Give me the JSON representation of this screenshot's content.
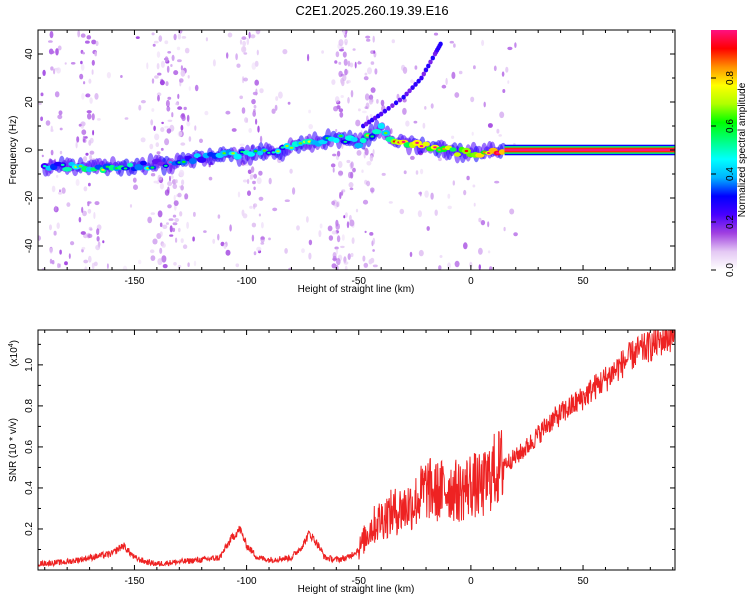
{
  "title": "C2E1.2025.260.19.39.E16",
  "chart_data": [
    {
      "type": "heatmap",
      "name": "spectrogram",
      "xlabel": "Height of straight line (km)",
      "ylabel": "Frequency (Hz)",
      "xlim": [
        -193,
        91
      ],
      "ylim": [
        -50,
        50
      ],
      "xticks": [
        -150,
        -100,
        -50,
        0,
        50
      ],
      "xtick_labels": [
        "-150",
        "-100",
        "-50",
        "0",
        "50"
      ],
      "yticks": [
        -40,
        -20,
        0,
        20,
        40
      ],
      "ytick_labels": [
        "-40",
        "-20",
        "0",
        "20",
        "40"
      ],
      "colorbar": {
        "label": "Normalized spectral amplitude",
        "range": [
          0,
          1
        ],
        "ticks": [
          0.0,
          0.2,
          0.4,
          0.6,
          0.8
        ],
        "tick_labels": [
          "0.0",
          "0.2",
          "0.4",
          "0.6",
          "0.8"
        ],
        "colors": [
          "#ffffff",
          "#e4c8f4",
          "#a040e0",
          "#4800ff",
          "#0000ff",
          "#00b4ff",
          "#00ffff",
          "#00ff80",
          "#00ff00",
          "#b0ff00",
          "#ffff00",
          "#ff9000",
          "#ff0000",
          "#ff1080"
        ]
      },
      "main_ridge": [
        {
          "x": -190,
          "y": -7,
          "v": 0.35
        },
        {
          "x": -180,
          "y": -7,
          "v": 0.4
        },
        {
          "x": -170,
          "y": -7,
          "v": 0.45
        },
        {
          "x": -160,
          "y": -7,
          "v": 0.45
        },
        {
          "x": -150,
          "y": -7,
          "v": 0.4
        },
        {
          "x": -140,
          "y": -6,
          "v": 0.3
        },
        {
          "x": -130,
          "y": -5,
          "v": 0.25
        },
        {
          "x": -120,
          "y": -3,
          "v": 0.35
        },
        {
          "x": -110,
          "y": -2,
          "v": 0.45
        },
        {
          "x": -100,
          "y": -2,
          "v": 0.4
        },
        {
          "x": -90,
          "y": -1,
          "v": 0.35
        },
        {
          "x": -80,
          "y": 1,
          "v": 0.4
        },
        {
          "x": -70,
          "y": 3,
          "v": 0.4
        },
        {
          "x": -60,
          "y": 5,
          "v": 0.35
        },
        {
          "x": -50,
          "y": 3,
          "v": 0.45
        },
        {
          "x": -45,
          "y": 6,
          "v": 0.45
        },
        {
          "x": -40,
          "y": 9,
          "v": 0.4
        },
        {
          "x": -35,
          "y": 4,
          "v": 0.65
        },
        {
          "x": -25,
          "y": 2,
          "v": 0.7
        },
        {
          "x": -15,
          "y": 1,
          "v": 0.65
        },
        {
          "x": -5,
          "y": -1,
          "v": 0.6
        },
        {
          "x": 5,
          "y": -1,
          "v": 0.7
        },
        {
          "x": 15,
          "y": 0,
          "v": 0.95
        },
        {
          "x": 40,
          "y": 0,
          "v": 1.0
        },
        {
          "x": 90,
          "y": 0,
          "v": 1.0
        }
      ],
      "chirp_branch": [
        {
          "x": -48,
          "y": 10
        },
        {
          "x": -40,
          "y": 15
        },
        {
          "x": -30,
          "y": 22
        },
        {
          "x": -22,
          "y": 30
        },
        {
          "x": -16,
          "y": 40
        },
        {
          "x": -13,
          "y": 45
        }
      ]
    },
    {
      "type": "line",
      "name": "snr",
      "xlabel": "Height of straight line (km)",
      "ylabel": "SNR (10 * v/v)",
      "y_scale_note": "(x10",
      "y_scale_exp": "4",
      "y_scale_close": ")",
      "color": "#ee2222",
      "xlim": [
        -193,
        91
      ],
      "ylim": [
        0,
        1.17
      ],
      "xticks": [
        -150,
        -100,
        -50,
        0,
        50
      ],
      "xtick_labels": [
        "-150",
        "-100",
        "-50",
        "0",
        "50"
      ],
      "yticks": [
        0.2,
        0.4,
        0.6,
        0.8,
        1.0
      ],
      "ytick_labels": [
        "0.2",
        "0.4",
        "0.6",
        "0.8",
        "1.0"
      ],
      "x": [
        -193,
        -180,
        -170,
        -160,
        -155,
        -150,
        -145,
        -140,
        -130,
        -120,
        -112,
        -107,
        -103,
        -100,
        -95,
        -90,
        -80,
        -75,
        -72,
        -68,
        -65,
        -60,
        -55,
        -50,
        -45,
        -40,
        -35,
        -30,
        -25,
        -20,
        -15,
        -10,
        -5,
        0,
        5,
        10,
        15,
        20,
        25,
        30,
        35,
        40,
        45,
        50,
        55,
        60,
        65,
        70,
        75,
        80,
        85,
        91
      ],
      "y": [
        0.03,
        0.04,
        0.06,
        0.08,
        0.12,
        0.06,
        0.04,
        0.03,
        0.04,
        0.05,
        0.06,
        0.15,
        0.2,
        0.12,
        0.06,
        0.05,
        0.06,
        0.12,
        0.18,
        0.12,
        0.06,
        0.05,
        0.06,
        0.1,
        0.2,
        0.25,
        0.28,
        0.3,
        0.33,
        0.4,
        0.38,
        0.4,
        0.38,
        0.42,
        0.4,
        0.48,
        0.52,
        0.55,
        0.6,
        0.66,
        0.72,
        0.76,
        0.8,
        0.84,
        0.89,
        0.93,
        0.98,
        1.03,
        1.07,
        1.09,
        1.12,
        1.15
      ]
    }
  ]
}
